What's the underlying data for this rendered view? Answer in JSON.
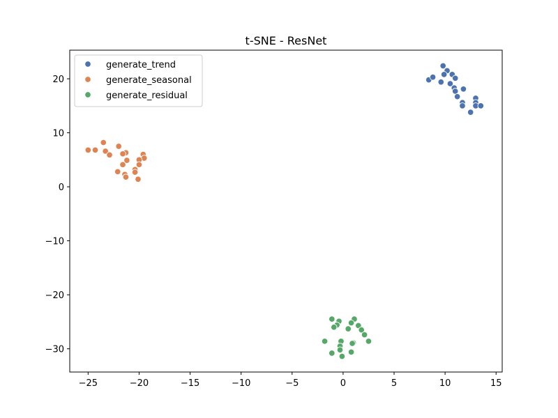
{
  "chart_data": {
    "type": "scatter",
    "title": "t-SNE - ResNet",
    "xlabel": "",
    "ylabel": "",
    "xlim": [
      -26.8,
      15.6
    ],
    "ylim": [
      -34.3,
      25.3
    ],
    "xticks": [
      -25,
      -20,
      -15,
      -10,
      -5,
      0,
      5,
      10,
      15
    ],
    "yticks": [
      -30,
      -20,
      -10,
      0,
      10,
      20
    ],
    "grid": false,
    "legend_position": "top-left",
    "series": [
      {
        "name": "generate_trend",
        "color": "#4c72b0",
        "points": [
          [
            9.8,
            22.4
          ],
          [
            10.2,
            21.5
          ],
          [
            9.9,
            20.8
          ],
          [
            10.7,
            20.8
          ],
          [
            11.0,
            20.1
          ],
          [
            8.4,
            19.8
          ],
          [
            8.8,
            20.3
          ],
          [
            9.6,
            19.4
          ],
          [
            10.5,
            19.1
          ],
          [
            10.9,
            18.3
          ],
          [
            11.8,
            18.1
          ],
          [
            11.0,
            17.7
          ],
          [
            11.2,
            16.7
          ],
          [
            13.0,
            16.4
          ],
          [
            11.7,
            15.6
          ],
          [
            13.0,
            15.6
          ],
          [
            11.7,
            15.0
          ],
          [
            13.0,
            15.0
          ],
          [
            13.5,
            15.0
          ],
          [
            12.5,
            13.8
          ]
        ]
      },
      {
        "name": "generate_seasonal",
        "color": "#dd8452",
        "points": [
          [
            -23.5,
            8.2
          ],
          [
            -22.0,
            7.5
          ],
          [
            -25.0,
            6.8
          ],
          [
            -24.3,
            6.8
          ],
          [
            -23.3,
            6.6
          ],
          [
            -21.3,
            6.3
          ],
          [
            -21.6,
            6.1
          ],
          [
            -19.6,
            6.0
          ],
          [
            -22.9,
            5.9
          ],
          [
            -19.5,
            5.3
          ],
          [
            -20.0,
            5.0
          ],
          [
            -21.2,
            4.9
          ],
          [
            -21.6,
            4.1
          ],
          [
            -20.0,
            4.1
          ],
          [
            -20.4,
            3.2
          ],
          [
            -22.1,
            2.8
          ],
          [
            -20.4,
            2.7
          ],
          [
            -21.4,
            2.3
          ],
          [
            -21.3,
            1.8
          ],
          [
            -20.1,
            1.4
          ]
        ]
      },
      {
        "name": "generate_residual",
        "color": "#55a868",
        "points": [
          [
            -1.1,
            -24.5
          ],
          [
            1.1,
            -24.5
          ],
          [
            -0.4,
            -24.9
          ],
          [
            0.8,
            -25.2
          ],
          [
            -0.6,
            -25.6
          ],
          [
            -0.9,
            -26.0
          ],
          [
            1.5,
            -25.7
          ],
          [
            0.5,
            -26.3
          ],
          [
            1.8,
            -26.5
          ],
          [
            2.1,
            -27.4
          ],
          [
            -1.8,
            -28.6
          ],
          [
            -0.2,
            -28.6
          ],
          [
            2.5,
            -28.6
          ],
          [
            1.0,
            -28.9
          ],
          [
            0.9,
            -29.0
          ],
          [
            -0.3,
            -29.5
          ],
          [
            -0.3,
            -30.2
          ],
          [
            -1.1,
            -30.8
          ],
          [
            0.8,
            -30.6
          ],
          [
            -0.1,
            -31.4
          ]
        ]
      }
    ]
  }
}
